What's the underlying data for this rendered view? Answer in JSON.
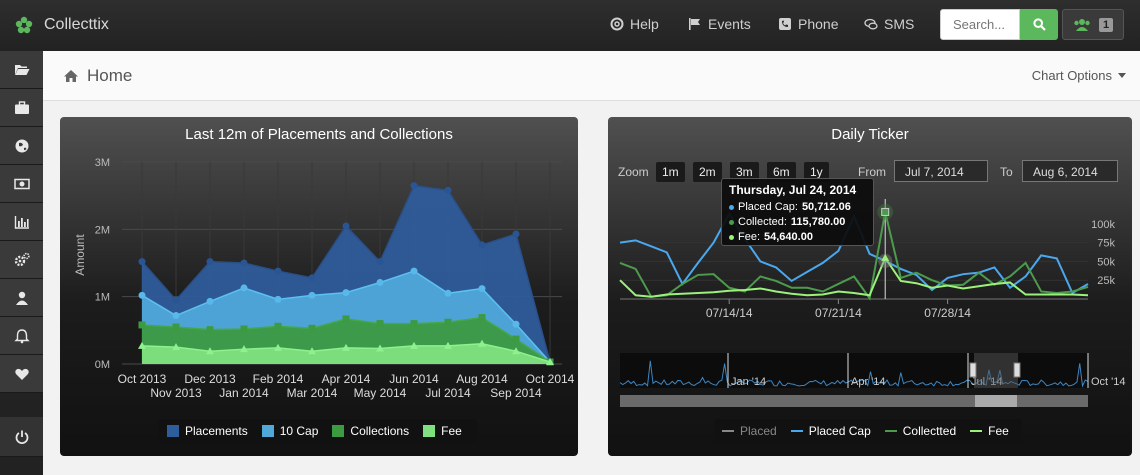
{
  "app": {
    "brand": "Collecttix"
  },
  "nav": {
    "help": "Help",
    "events": "Events",
    "phone": "Phone",
    "sms": "SMS"
  },
  "search": {
    "placeholder": "Search..."
  },
  "user": {
    "badge": "1"
  },
  "sidebar": {
    "items": [
      {
        "icon": "folder-open-icon"
      },
      {
        "icon": "briefcase-icon"
      },
      {
        "icon": "globe-icon"
      },
      {
        "icon": "money-icon"
      },
      {
        "icon": "bar-chart-icon"
      },
      {
        "icon": "gears-icon"
      },
      {
        "icon": "user-icon"
      },
      {
        "icon": "bell-icon"
      },
      {
        "icon": "heart-icon"
      },
      {
        "icon": "power-icon"
      }
    ]
  },
  "page": {
    "title": "Home",
    "chart_options": "Chart Options"
  },
  "colors": {
    "placements": "#2f5c9a",
    "cap10": "#4fa8d8",
    "collections": "#3c9a43",
    "fee": "#7ee07e",
    "placed_cap": "#4aa8ef",
    "collected": "#4c9b4c",
    "fee_line": "#9bf27a",
    "placed": "#888888"
  },
  "chart_data": [
    {
      "type": "area",
      "title": "Last 12m of Placements and Collections",
      "ylabel": "Amount",
      "ylim": [
        0,
        3000000
      ],
      "yticks": [
        "0M",
        "1M",
        "2M",
        "3M"
      ],
      "categories": [
        "Oct 2013",
        "Nov 2013",
        "Dec 2013",
        "Jan 2014",
        "Feb 2014",
        "Mar 2014",
        "Apr 2014",
        "May 2014",
        "Jun 2014",
        "Jul 2014",
        "Aug 2014",
        "Sep 2014",
        "Oct 2014"
      ],
      "series": [
        {
          "name": "Placements",
          "values": [
            1520000,
            950000,
            1520000,
            1500000,
            1380000,
            1280000,
            2050000,
            1520000,
            2650000,
            2580000,
            1770000,
            1930000,
            30000
          ]
        },
        {
          "name": "10 Cap",
          "values": [
            1020000,
            720000,
            930000,
            1130000,
            960000,
            1020000,
            1060000,
            1210000,
            1380000,
            1050000,
            1120000,
            590000,
            30000
          ]
        },
        {
          "name": "Collections",
          "values": [
            580000,
            550000,
            510000,
            520000,
            560000,
            530000,
            670000,
            600000,
            600000,
            620000,
            690000,
            370000,
            30000
          ]
        },
        {
          "name": "Fee",
          "values": [
            270000,
            250000,
            190000,
            220000,
            240000,
            190000,
            240000,
            230000,
            270000,
            270000,
            300000,
            190000,
            30000
          ]
        }
      ]
    },
    {
      "type": "line",
      "title": "Daily Ticker",
      "zoom_label": "Zoom",
      "zoom_options": [
        "1m",
        "2m",
        "3m",
        "6m",
        "1y"
      ],
      "from_label": "From",
      "from_date": "Jul 7, 2014",
      "to_label": "To",
      "to_date": "Aug 6, 2014",
      "y_ticks": [
        "100k",
        "75k",
        "50k",
        "25k"
      ],
      "ylim": [
        0,
        125000
      ],
      "x_ticks": [
        "07/14/14",
        "07/21/14",
        "07/28/14"
      ],
      "navigator_labels": [
        "Jan '14",
        "Apr '14",
        "Jul '14",
        "Oct '14"
      ],
      "x": [
        "Jul 7",
        "Jul 8",
        "Jul 9",
        "Jul 10",
        "Jul 11",
        "Jul 12",
        "Jul 13",
        "Jul 14",
        "Jul 15",
        "Jul 16",
        "Jul 17",
        "Jul 18",
        "Jul 19",
        "Jul 20",
        "Jul 21",
        "Jul 22",
        "Jul 23",
        "Jul 24",
        "Jul 25",
        "Jul 26",
        "Jul 27",
        "Jul 28",
        "Jul 29",
        "Jul 30",
        "Jul 31",
        "Aug 1",
        "Aug 2",
        "Aug 3",
        "Aug 4",
        "Aug 5",
        "Aug 6"
      ],
      "series": [
        {
          "name": "Placed Cap",
          "values": [
            75000,
            78000,
            70000,
            62000,
            20000,
            48000,
            75000,
            113000,
            80000,
            50000,
            42000,
            24000,
            36000,
            48000,
            64000,
            110000,
            60000,
            50712,
            40000,
            32000,
            12000,
            28000,
            33000,
            35000,
            42000,
            15000,
            30000,
            58000,
            54000,
            8000,
            20000
          ]
        },
        {
          "name": "Collectted",
          "values": [
            48000,
            40000,
            3000,
            5000,
            20000,
            32000,
            33000,
            15000,
            10000,
            30000,
            24000,
            15000,
            15000,
            10000,
            20000,
            30000,
            1000,
            115780,
            28000,
            35000,
            25000,
            18000,
            19000,
            35000,
            19000,
            30000,
            48000,
            10000,
            8000,
            10000,
            16000
          ]
        },
        {
          "name": "Fee",
          "values": [
            25000,
            5000,
            3000,
            6000,
            7000,
            8000,
            9000,
            11000,
            12000,
            14000,
            10000,
            7000,
            5000,
            6000,
            10000,
            8000,
            5000,
            54640,
            24000,
            21000,
            15000,
            18000,
            14000,
            17000,
            20000,
            22000,
            6000,
            6000,
            6000,
            6000,
            5000
          ]
        }
      ],
      "tooltip": {
        "date": "Thursday, Jul 24, 2014",
        "rows": [
          {
            "label": "Placed Cap:",
            "value": "50,712.06"
          },
          {
            "label": "Collected:",
            "value": "115,780.00"
          },
          {
            "label": "Fee:",
            "value": "54,640.00"
          }
        ]
      },
      "legend": [
        "Placed",
        "Placed Cap",
        "Collectted",
        "Fee"
      ]
    }
  ]
}
